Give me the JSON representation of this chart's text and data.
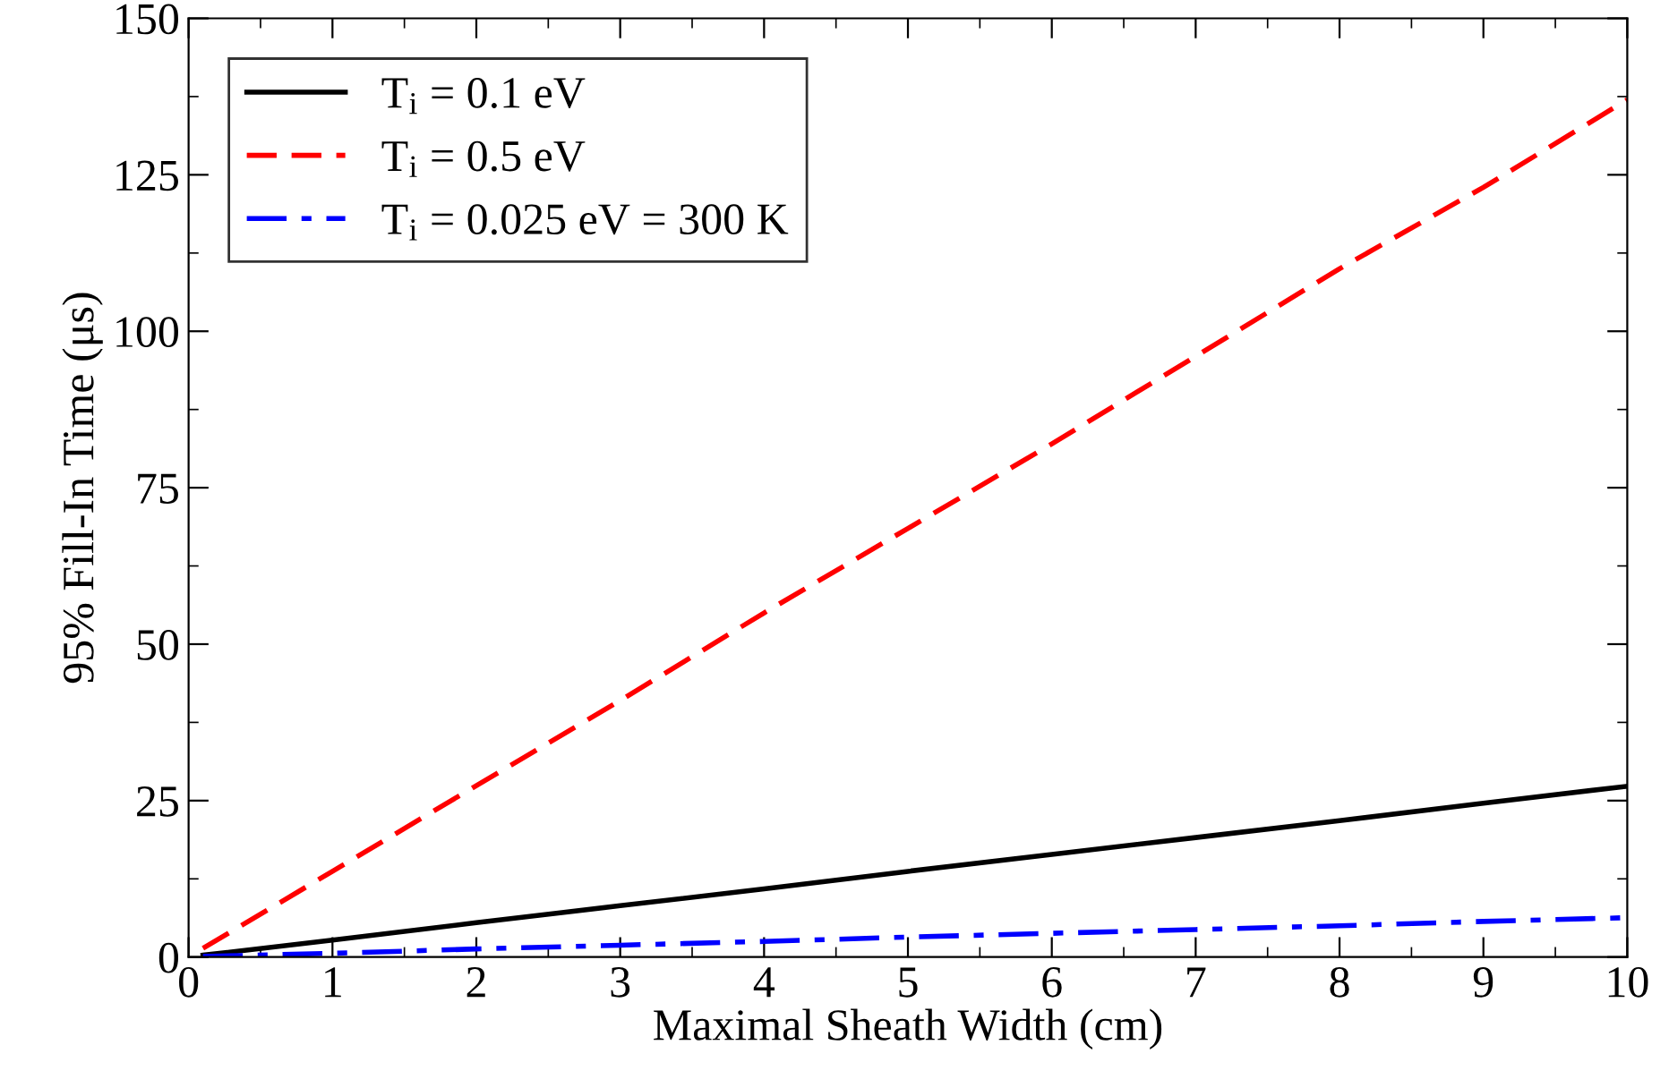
{
  "chart_data": {
    "type": "line",
    "xlabel": "Maximal Sheath Width (cm)",
    "ylabel": "95% Fill-In Time (μs)",
    "xlim": [
      0,
      10
    ],
    "ylim": [
      0,
      150
    ],
    "xticks": [
      0,
      1,
      2,
      3,
      4,
      5,
      6,
      7,
      8,
      9,
      10
    ],
    "yticks": [
      0,
      25,
      50,
      75,
      100,
      125,
      150
    ],
    "grid": false,
    "legend": "top left",
    "series": [
      {
        "name": "T$_{i}$ = 0.1 eV",
        "color": "#000000",
        "line_style": "solid",
        "x": [
          0.1,
          1,
          2,
          3,
          4,
          5,
          6,
          7,
          8,
          9,
          10
        ],
        "values": [
          0.3,
          2.7,
          5.5,
          8.2,
          10.9,
          13.7,
          16.4,
          19.1,
          21.8,
          24.6,
          27.3
        ]
      },
      {
        "name": "T$_{i}$ = 0.5 eV",
        "color": "#ff0000",
        "line_style": "dashed",
        "x": [
          0.1,
          1,
          2,
          3,
          4,
          5,
          6,
          7,
          8,
          9,
          10
        ],
        "values": [
          1.4,
          13.7,
          27.4,
          41,
          55,
          68.5,
          82,
          96,
          110,
          123,
          137
        ]
      },
      {
        "name": "T$_{i}$ = 0.025 eV = 300 K",
        "color": "#0000ff",
        "line_style": "dashdot",
        "x": [
          0.1,
          1,
          2,
          3,
          4,
          5,
          6,
          7,
          8,
          9,
          10
        ],
        "values": [
          0.1,
          0.6,
          1.3,
          1.9,
          2.5,
          3.2,
          3.8,
          4.4,
          5,
          5.7,
          6.3
        ]
      }
    ]
  }
}
